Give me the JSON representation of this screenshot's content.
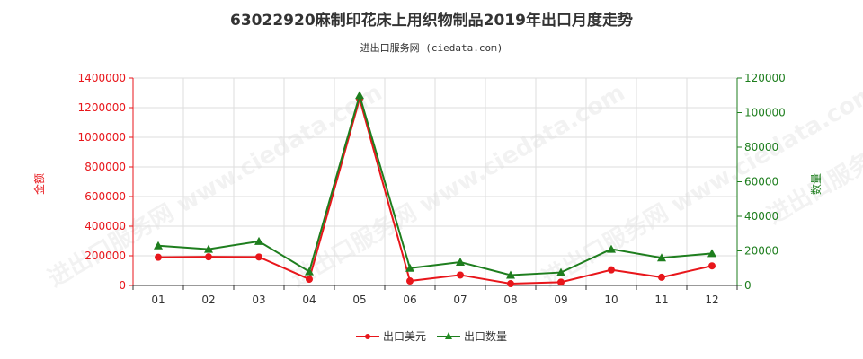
{
  "title": "63022920麻制印花床上用织物制品2019年出口月度走势",
  "subtitle": "进出口服务网 (ciedata.com)",
  "watermark": "进出口服务网 www.ciedata.com",
  "colors": {
    "amount": "#e8161b",
    "quantity": "#1e7e1e",
    "grid": "#dddddd"
  },
  "chart_data": {
    "type": "line",
    "title": "63022920麻制印花床上用织物制品2019年出口月度走势",
    "categories": [
      "01",
      "02",
      "03",
      "04",
      "05",
      "06",
      "07",
      "08",
      "09",
      "10",
      "11",
      "12"
    ],
    "y_left": {
      "label": "金额",
      "ylim": [
        0,
        1400000
      ],
      "ticks": [
        "0",
        "200000",
        "400000",
        "600000",
        "800000",
        "1000000",
        "1200000",
        "1400000"
      ]
    },
    "y_right": {
      "label": "数量",
      "ylim": [
        0,
        120000
      ],
      "ticks": [
        "0",
        "20000",
        "40000",
        "60000",
        "80000",
        "100000",
        "120000"
      ]
    },
    "grid": true,
    "legend_position": "bottom-center",
    "series": [
      {
        "name": "出口美元",
        "axis": "left",
        "color": "#e8161b",
        "marker": "circle",
        "values": [
          190000,
          193000,
          192000,
          42000,
          1260000,
          30000,
          70000,
          12000,
          22000,
          105000,
          55000,
          132000
        ]
      },
      {
        "name": "出口数量",
        "axis": "right",
        "color": "#1e7e1e",
        "marker": "triangle",
        "values": [
          23000,
          21000,
          25500,
          8000,
          110000,
          10000,
          13500,
          6000,
          7500,
          21000,
          16000,
          18500
        ]
      }
    ]
  }
}
